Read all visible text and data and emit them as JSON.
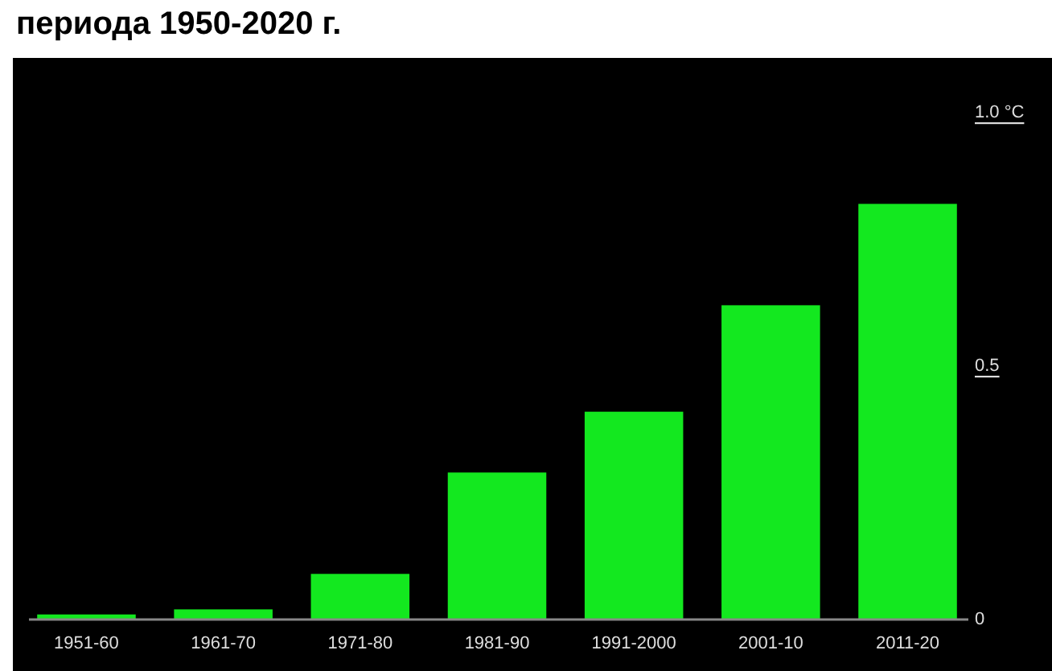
{
  "chart_data": {
    "type": "bar",
    "title": "периода 1950-2020 г.",
    "categories": [
      "1951-60",
      "1961-70",
      "1971-80",
      "1981-90",
      "1991-2000",
      "2001-10",
      "2011-20"
    ],
    "values": [
      0.01,
      0.02,
      0.09,
      0.29,
      0.41,
      0.62,
      0.82
    ],
    "color": "#13e81f",
    "ylim": [
      0,
      1.0
    ],
    "yticks": [
      0,
      0.5,
      {
        "value": 1.0,
        "label": "1.0 °C"
      }
    ],
    "grid": false
  }
}
